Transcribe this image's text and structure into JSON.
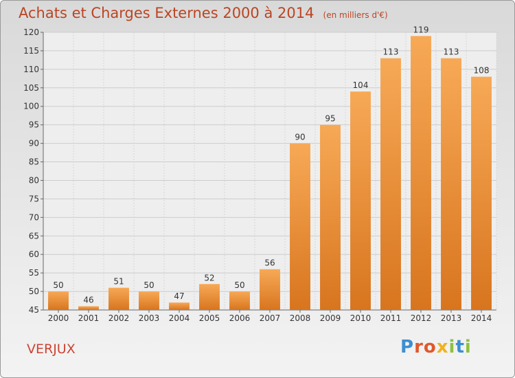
{
  "header": {
    "title": "Achats et Charges Externes 2000 à 2014",
    "subtitle": "(en milliers d'€)"
  },
  "footer": {
    "place": "VERJUX",
    "logo": "Proxiti"
  },
  "colors": {
    "bar_light": "#f7a956",
    "bar_dark": "#d8751f",
    "title": "#bb4422",
    "logo_letters": [
      "#3c8fd1",
      "#e0582b",
      "#e0582b",
      "#f0b21e",
      "#8fc13d",
      "#3c8fd1",
      "#8fc13d"
    ]
  },
  "chart_data": {
    "type": "bar",
    "categories": [
      "2000",
      "2001",
      "2002",
      "2003",
      "2004",
      "2005",
      "2006",
      "2007",
      "2008",
      "2009",
      "2010",
      "2011",
      "2012",
      "2013",
      "2014"
    ],
    "values": [
      50,
      46,
      51,
      50,
      47,
      52,
      50,
      56,
      90,
      95,
      104,
      113,
      119,
      113,
      108
    ],
    "title": "Achats et Charges Externes 2000 à 2014",
    "ylim": [
      45,
      120
    ],
    "yticks": [
      45,
      50,
      55,
      60,
      65,
      70,
      75,
      80,
      85,
      90,
      95,
      100,
      105,
      110,
      115,
      120
    ],
    "grid": true,
    "data_labels": true
  }
}
